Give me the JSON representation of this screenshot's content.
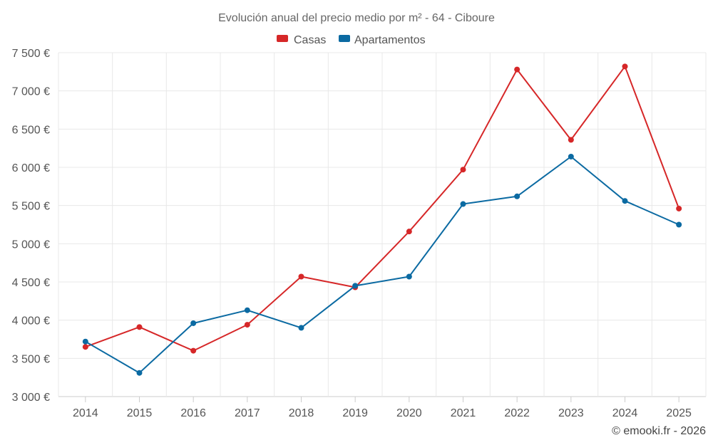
{
  "chart_data": {
    "type": "line",
    "title": "Evolución anual del precio medio por m² - 64 - Ciboure",
    "categories": [
      "2014",
      "2015",
      "2016",
      "2017",
      "2018",
      "2019",
      "2020",
      "2021",
      "2022",
      "2023",
      "2024",
      "2025"
    ],
    "series": [
      {
        "name": "Casas",
        "color": "#d62728",
        "values": [
          3650,
          3910,
          3600,
          3940,
          4570,
          4430,
          5160,
          5970,
          7280,
          6360,
          7320,
          5460
        ]
      },
      {
        "name": "Apartamentos",
        "color": "#0b6aa2",
        "values": [
          3720,
          3310,
          3960,
          4130,
          3900,
          4450,
          4570,
          5520,
          5620,
          6140,
          5560,
          5250
        ]
      }
    ],
    "ylim": [
      3000,
      7500
    ],
    "yticks": [
      3000,
      3500,
      4000,
      4500,
      5000,
      5500,
      6000,
      6500,
      7000,
      7500
    ],
    "ytick_labels": [
      "3 000 €",
      "3 500 €",
      "4 000 €",
      "4 500 €",
      "5 000 €",
      "5 500 €",
      "6 000 €",
      "6 500 €",
      "7 000 €",
      "7 500 €"
    ],
    "xlabel": "",
    "ylabel": "",
    "grid": true,
    "legend_position": "top-center"
  },
  "credit": "© emooki.fr - 2026"
}
